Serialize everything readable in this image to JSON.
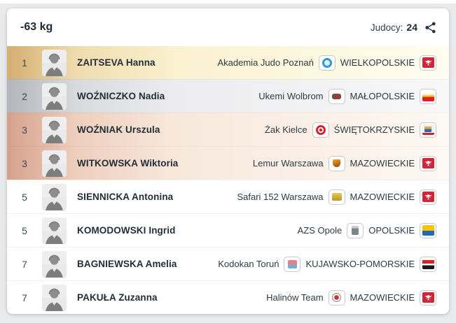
{
  "header": {
    "title": "-63 kg",
    "participants_label": "Judocy:",
    "participants_count": "24"
  },
  "colors": {
    "medal_gold": "#d5ae72",
    "medal_silver": "#b2b6bb",
    "medal_bronze": "#d6a18c",
    "flag_red": "#d32535",
    "flag_yellow": "#f7c408",
    "flag_blue": "#1f6cb5",
    "flag_black": "#17181c",
    "text_dark": "#222f38",
    "page_background": "#e9eaec"
  },
  "rows": [
    {
      "rank": "1",
      "name": "ZAITSEVA Hanna",
      "club": "Akademia Judo Poznań",
      "region": "WIELKOPOLSKIE",
      "medal": "gold",
      "club_logo": "akademia-judo-poznan",
      "flag": "wielkopolskie"
    },
    {
      "rank": "2",
      "name": "WOŹNICZKO Nadia",
      "club": "Ukemi Wolbrom",
      "region": "MAŁOPOLSKIE",
      "medal": "silver",
      "club_logo": "ukemi-wolbrom",
      "flag": "malopolskie"
    },
    {
      "rank": "3",
      "name": "WOŹNIAK Urszula",
      "club": "Żak Kielce",
      "region": "ŚWIĘTOKRZYSKIE",
      "medal": "bronze",
      "club_logo": "zak-kielce",
      "flag": "swietokrzyskie"
    },
    {
      "rank": "3",
      "name": "WITKOWSKA Wiktoria",
      "club": "Lemur Warszawa",
      "region": "MAZOWIECKIE",
      "medal": "bronze",
      "club_logo": "lemur-warszawa",
      "flag": "mazowieckie"
    },
    {
      "rank": "5",
      "name": "SIENNICKA Antonina",
      "club": "Safari 152 Warszawa",
      "region": "MAZOWIECKIE",
      "medal": "none",
      "club_logo": "safari-152-warszawa",
      "flag": "mazowieckie"
    },
    {
      "rank": "5",
      "name": "KOMODOWSKI Ingrid",
      "club": "AZS Opole",
      "region": "OPOLSKIE",
      "medal": "none",
      "club_logo": "azs-opole",
      "flag": "opolskie"
    },
    {
      "rank": "7",
      "name": "BAGNIEWSKA Amelia",
      "club": "Kodokan Toruń",
      "region": "KUJAWSKO-POMORSKIE",
      "medal": "none",
      "club_logo": "kodokan-torun",
      "flag": "kujawsko-pomorskie"
    },
    {
      "rank": "7",
      "name": "PAKUŁA Zuzanna",
      "club": "Halinów Team",
      "region": "MAZOWIECKIE",
      "medal": "none",
      "club_logo": "halinow-team",
      "flag": "mazowieckie"
    }
  ]
}
